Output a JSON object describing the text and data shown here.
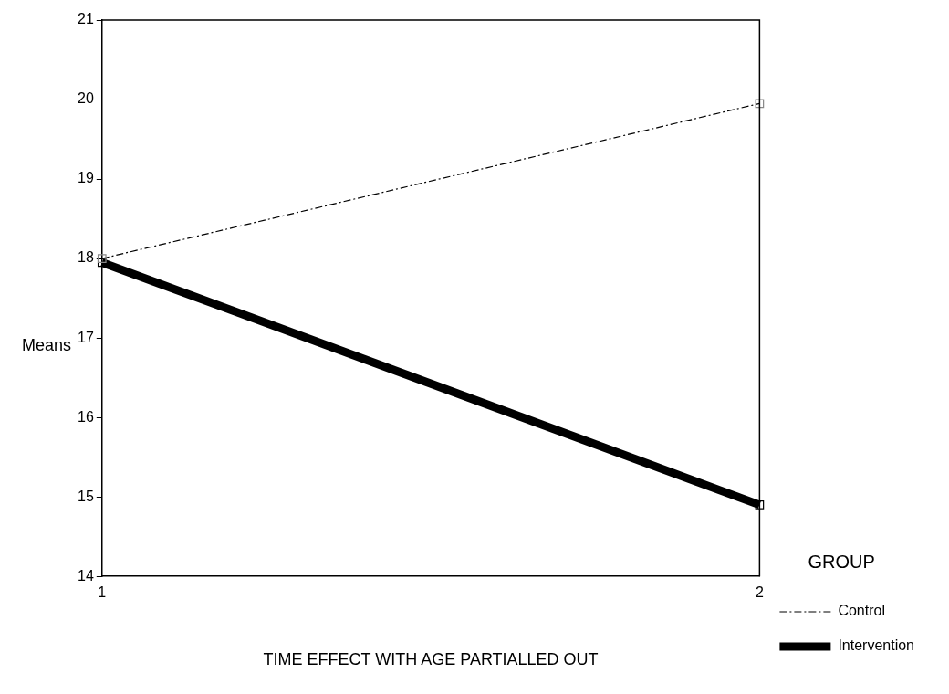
{
  "chart_data": {
    "type": "line",
    "xlabel": "TIME EFFECT WITH AGE PARTIALLED OUT",
    "ylabel": "Means",
    "legend_title": "GROUP",
    "x": [
      1,
      2
    ],
    "xlim": [
      1,
      2
    ],
    "xticks": [
      1,
      2
    ],
    "ylim": [
      14,
      21
    ],
    "yticks": [
      14,
      15,
      16,
      17,
      18,
      19,
      20,
      21
    ],
    "series": [
      {
        "name": "Control",
        "color": "#000000",
        "values": [
          18.0,
          19.95
        ],
        "line_style": "dashed"
      },
      {
        "name": "Intervention",
        "color": "#000000",
        "values": [
          17.95,
          14.9
        ],
        "line_style": "solid"
      }
    ],
    "marker": "square",
    "grid": false,
    "legend": "right"
  }
}
